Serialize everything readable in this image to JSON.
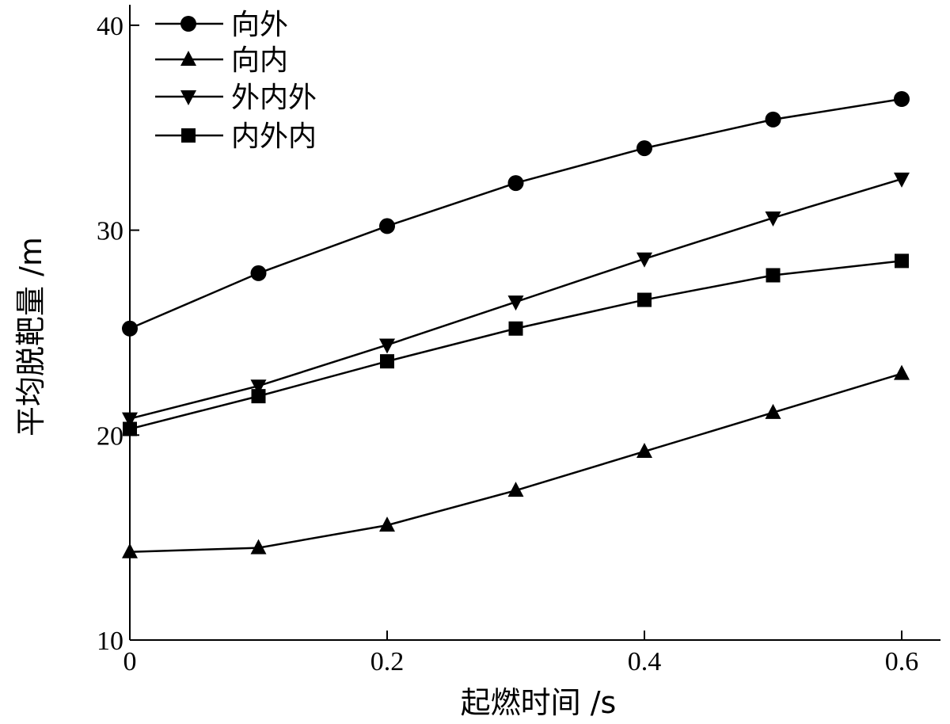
{
  "chart_data": {
    "type": "line",
    "xlabel": "起燃时间 /s",
    "ylabel": "平均脱靶量 /m",
    "xlim": [
      0,
      0.63
    ],
    "ylim": [
      10,
      41
    ],
    "x_ticks": [
      "0",
      "0.2",
      "0.4",
      "0.6"
    ],
    "x_tick_values": [
      0,
      0.2,
      0.4,
      0.6
    ],
    "y_ticks": [
      "10",
      "20",
      "30",
      "40"
    ],
    "y_tick_values": [
      10,
      20,
      30,
      40
    ],
    "grid": false,
    "legend_position": "top-left",
    "series": [
      {
        "name": "向外",
        "marker": "circle",
        "x": [
          0,
          0.1,
          0.2,
          0.3,
          0.4,
          0.5,
          0.6
        ],
        "y": [
          25.2,
          27.9,
          30.2,
          32.3,
          34.0,
          35.4,
          36.4
        ]
      },
      {
        "name": "向内",
        "marker": "triangle-up",
        "x": [
          0,
          0.1,
          0.2,
          0.3,
          0.4,
          0.5,
          0.6
        ],
        "y": [
          14.3,
          14.5,
          15.6,
          17.3,
          19.2,
          21.1,
          23.0
        ]
      },
      {
        "name": "外内外",
        "marker": "triangle-down",
        "x": [
          0,
          0.1,
          0.2,
          0.3,
          0.4,
          0.5,
          0.6
        ],
        "y": [
          20.8,
          22.4,
          24.4,
          26.5,
          28.6,
          30.6,
          32.5
        ]
      },
      {
        "name": "内外内",
        "marker": "square",
        "x": [
          0,
          0.1,
          0.2,
          0.3,
          0.4,
          0.5,
          0.6
        ],
        "y": [
          20.3,
          21.9,
          23.6,
          25.2,
          26.6,
          27.8,
          28.5
        ]
      }
    ]
  }
}
